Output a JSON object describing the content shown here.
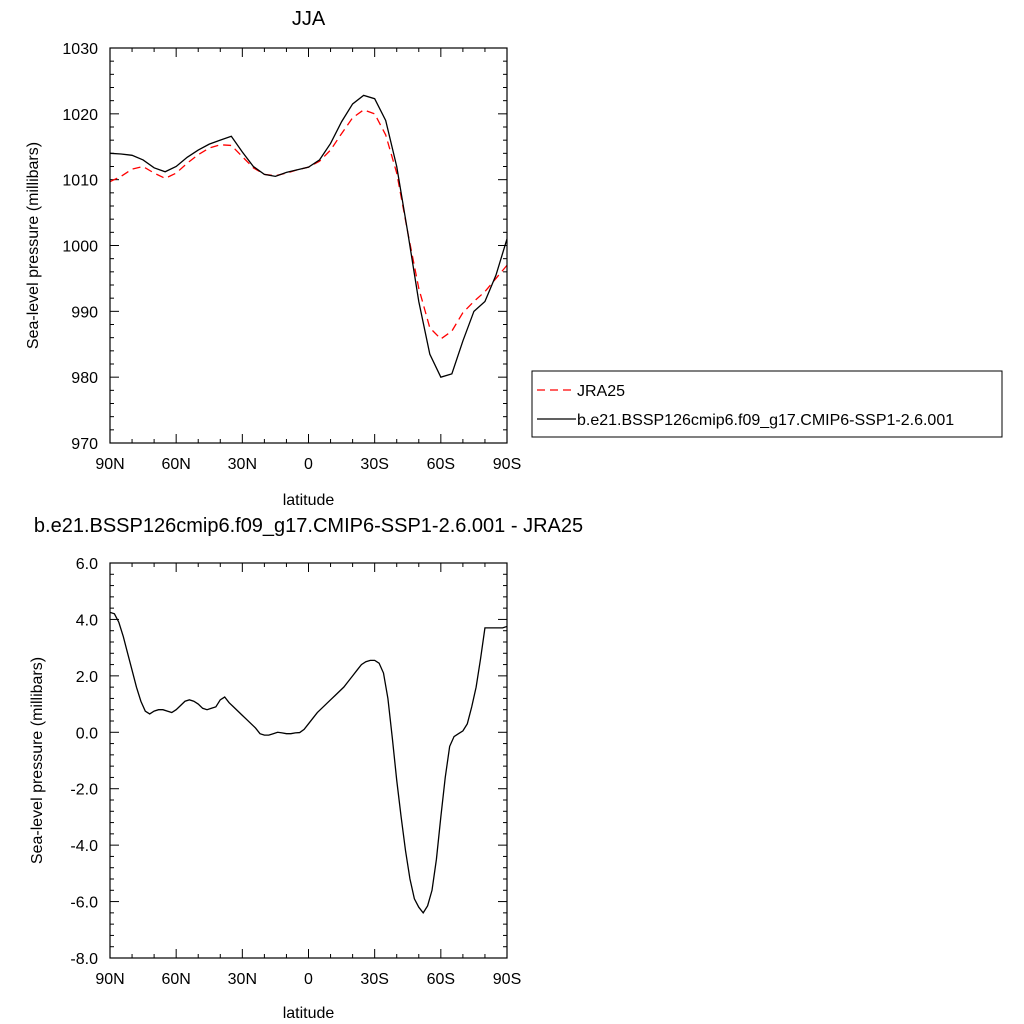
{
  "chart_data": [
    {
      "type": "line",
      "title": "JJA",
      "xlabel": "latitude",
      "ylabel": "Sea-level pressure (millibars)",
      "xlim": [
        90,
        -90
      ],
      "ylim": [
        970,
        1030
      ],
      "x_tick_values": [
        90,
        60,
        30,
        0,
        -30,
        -60,
        -90
      ],
      "x_tick_labels": [
        "90N",
        "60N",
        "30N",
        "0",
        "30S",
        "60S",
        "90S"
      ],
      "y_tick_values": [
        970,
        980,
        990,
        1000,
        1010,
        1020,
        1030
      ],
      "y_tick_labels": [
        "970",
        "980",
        "990",
        "1000",
        "1010",
        "1020",
        "1030"
      ],
      "legend_position": "right",
      "series": [
        {
          "name": "JRA25",
          "color": "#ff0000",
          "dash": "dashed",
          "x": [
            90,
            85,
            80,
            75,
            70,
            65,
            60,
            55,
            50,
            45,
            40,
            35,
            30,
            25,
            20,
            15,
            10,
            5,
            0,
            -5,
            -10,
            -15,
            -20,
            -25,
            -30,
            -35,
            -40,
            -45,
            -50,
            -55,
            -60,
            -65,
            -70,
            -75,
            -80,
            -85,
            -90
          ],
          "values": [
            1009.7,
            1010.5,
            1011.6,
            1012.0,
            1011.0,
            1010.2,
            1011.0,
            1012.5,
            1013.8,
            1014.8,
            1015.3,
            1015.2,
            1013.5,
            1011.8,
            1010.8,
            1010.6,
            1011.0,
            1011.5,
            1011.9,
            1012.8,
            1014.5,
            1017.0,
            1019.4,
            1020.6,
            1020.0,
            1016.8,
            1011.0,
            1002.0,
            993.5,
            987.5,
            985.8,
            987.0,
            989.8,
            991.5,
            993.0,
            995.0,
            997.0
          ]
        },
        {
          "name": "b.e21.BSSP126cmip6.f09_g17.CMIP6-SSP1-2.6.001",
          "color": "#000000",
          "dash": "solid",
          "x": [
            90,
            85,
            80,
            75,
            70,
            65,
            60,
            55,
            50,
            45,
            40,
            35,
            30,
            25,
            20,
            15,
            10,
            5,
            0,
            -5,
            -10,
            -15,
            -20,
            -25,
            -30,
            -35,
            -40,
            -45,
            -50,
            -55,
            -60,
            -65,
            -70,
            -75,
            -80,
            -85,
            -90
          ],
          "values": [
            1014.0,
            1013.9,
            1013.7,
            1013.0,
            1011.8,
            1011.2,
            1012.0,
            1013.4,
            1014.5,
            1015.4,
            1016.0,
            1016.6,
            1014.2,
            1012.0,
            1010.8,
            1010.5,
            1011.1,
            1011.5,
            1011.9,
            1013.0,
            1015.5,
            1018.8,
            1021.5,
            1022.8,
            1022.3,
            1019.0,
            1012.0,
            1002.0,
            991.5,
            983.5,
            980.0,
            980.5,
            985.5,
            990.0,
            991.5,
            995.5,
            1001.0
          ]
        }
      ]
    },
    {
      "type": "line",
      "title": "b.e21.BSSP126cmip6.f09_g17.CMIP6-SSP1-2.6.001 - JRA25",
      "xlabel": "latitude",
      "ylabel": "Sea-level pressure (millibars)",
      "xlim": [
        90,
        -90
      ],
      "ylim": [
        -8,
        6
      ],
      "x_tick_values": [
        90,
        60,
        30,
        0,
        -30,
        -60,
        -90
      ],
      "x_tick_labels": [
        "90N",
        "60N",
        "30N",
        "0",
        "30S",
        "60S",
        "90S"
      ],
      "y_tick_values": [
        -8,
        -6,
        -4,
        -2,
        0,
        2,
        4,
        6
      ],
      "y_tick_labels": [
        "-8.0",
        "-6.0",
        "-4.0",
        "-2.0",
        "0.0",
        "2.0",
        "4.0",
        "6.0"
      ],
      "series": [
        {
          "color": "#000000",
          "dash": "solid",
          "x": [
            90,
            88,
            86,
            84,
            82,
            80,
            78,
            76,
            74,
            72,
            70,
            68,
            66,
            64,
            62,
            60,
            58,
            56,
            54,
            52,
            50,
            48,
            46,
            44,
            42,
            40,
            38,
            36,
            34,
            32,
            30,
            28,
            26,
            24,
            22,
            20,
            18,
            16,
            14,
            12,
            10,
            8,
            6,
            4,
            2,
            0,
            -2,
            -4,
            -6,
            -8,
            -10,
            -12,
            -14,
            -16,
            -18,
            -20,
            -22,
            -24,
            -26,
            -28,
            -30,
            -32,
            -34,
            -36,
            -38,
            -40,
            -42,
            -44,
            -46,
            -48,
            -50,
            -52,
            -54,
            -56,
            -58,
            -60,
            -62,
            -64,
            -66,
            -68,
            -70,
            -72,
            -74,
            -76,
            -78,
            -80,
            -82,
            -84,
            -86,
            -88,
            -90
          ],
          "values": [
            4.25,
            4.2,
            3.9,
            3.4,
            2.8,
            2.2,
            1.6,
            1.1,
            0.75,
            0.65,
            0.75,
            0.8,
            0.8,
            0.75,
            0.7,
            0.8,
            0.95,
            1.1,
            1.15,
            1.1,
            1.0,
            0.85,
            0.8,
            0.85,
            0.9,
            1.15,
            1.25,
            1.05,
            0.9,
            0.75,
            0.6,
            0.45,
            0.3,
            0.15,
            -0.05,
            -0.1,
            -0.1,
            -0.05,
            0.0,
            -0.02,
            -0.05,
            -0.05,
            -0.02,
            -0.01,
            0.1,
            0.3,
            0.5,
            0.7,
            0.85,
            1.0,
            1.15,
            1.3,
            1.45,
            1.6,
            1.8,
            2.0,
            2.2,
            2.4,
            2.5,
            2.55,
            2.55,
            2.45,
            2.1,
            1.2,
            -0.2,
            -1.7,
            -3.0,
            -4.2,
            -5.2,
            -5.9,
            -6.2,
            -6.4,
            -6.15,
            -5.6,
            -4.5,
            -3.0,
            -1.6,
            -0.5,
            -0.15,
            -0.05,
            0.05,
            0.3,
            0.9,
            1.6,
            2.6,
            3.7,
            3.7,
            3.7,
            3.7,
            3.7,
            3.75
          ]
        }
      ]
    }
  ]
}
